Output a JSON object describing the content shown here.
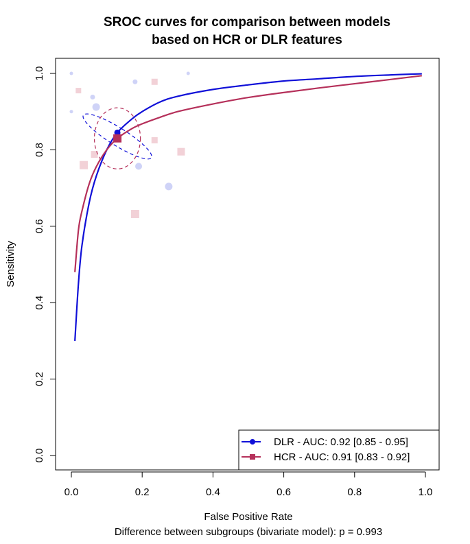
{
  "chart_data": {
    "type": "line",
    "title_line1": "SROC curves for comparison between models",
    "title_line2": "based on HCR or DLR features",
    "xlabel": "False Positive Rate",
    "ylabel": "Sensitivity",
    "footnote": "Difference between subgroups (bivariate model): p = 0.993",
    "xlim": [
      0.0,
      1.0
    ],
    "ylim": [
      0.0,
      1.0
    ],
    "x_ticks": [
      "0.0",
      "0.2",
      "0.4",
      "0.6",
      "0.8",
      "1.0"
    ],
    "y_ticks": [
      "0.0",
      "0.2",
      "0.4",
      "0.6",
      "0.8",
      "1.0"
    ],
    "grid": false,
    "legend_position": "bottom-right",
    "series": [
      {
        "name": "DLR",
        "legend_label": "DLR - AUC: 0.92 [0.85 - 0.95]",
        "color": "#1010d8",
        "marker": "circle",
        "summary_point": {
          "x": 0.13,
          "y": 0.845
        },
        "confidence_ellipse": {
          "cx": 0.13,
          "cy": 0.835,
          "rx_minor": 0.025,
          "ry_major": 0.105,
          "angle_deg": -58
        },
        "curve": [
          [
            0.01,
            0.3
          ],
          [
            0.02,
            0.45
          ],
          [
            0.03,
            0.55
          ],
          [
            0.05,
            0.66
          ],
          [
            0.07,
            0.73
          ],
          [
            0.1,
            0.8
          ],
          [
            0.13,
            0.845
          ],
          [
            0.17,
            0.88
          ],
          [
            0.2,
            0.9
          ],
          [
            0.25,
            0.925
          ],
          [
            0.3,
            0.94
          ],
          [
            0.4,
            0.958
          ],
          [
            0.5,
            0.97
          ],
          [
            0.6,
            0.98
          ],
          [
            0.7,
            0.986
          ],
          [
            0.8,
            0.992
          ],
          [
            0.9,
            0.996
          ],
          [
            0.99,
            0.999
          ]
        ],
        "study_points": [
          {
            "x": 0.0,
            "y": 1.0,
            "size": 3
          },
          {
            "x": 0.0,
            "y": 0.9,
            "size": 3
          },
          {
            "x": 0.06,
            "y": 0.938,
            "size": 5
          },
          {
            "x": 0.07,
            "y": 0.912,
            "size": 9
          },
          {
            "x": 0.18,
            "y": 0.978,
            "size": 5
          },
          {
            "x": 0.19,
            "y": 0.757,
            "size": 8
          },
          {
            "x": 0.275,
            "y": 0.704,
            "size": 9
          },
          {
            "x": 0.33,
            "y": 1.0,
            "size": 3
          }
        ]
      },
      {
        "name": "HCR",
        "legend_label": "HCR - AUC: 0.91 [0.83 - 0.92]",
        "color": "#b5305a",
        "marker": "square",
        "summary_point": {
          "x": 0.13,
          "y": 0.83
        },
        "confidence_ellipse": {
          "cx": 0.13,
          "cy": 0.83,
          "rx_minor": 0.065,
          "ry_major": 0.08,
          "angle_deg": 0
        },
        "curve": [
          [
            0.01,
            0.48
          ],
          [
            0.02,
            0.59
          ],
          [
            0.03,
            0.64
          ],
          [
            0.05,
            0.71
          ],
          [
            0.07,
            0.755
          ],
          [
            0.1,
            0.8
          ],
          [
            0.13,
            0.83
          ],
          [
            0.17,
            0.855
          ],
          [
            0.2,
            0.868
          ],
          [
            0.25,
            0.885
          ],
          [
            0.3,
            0.9
          ],
          [
            0.4,
            0.92
          ],
          [
            0.5,
            0.937
          ],
          [
            0.6,
            0.95
          ],
          [
            0.7,
            0.962
          ],
          [
            0.8,
            0.973
          ],
          [
            0.9,
            0.984
          ],
          [
            0.99,
            0.994
          ]
        ],
        "study_points": [
          {
            "x": 0.02,
            "y": 0.955,
            "size": 6
          },
          {
            "x": 0.035,
            "y": 0.76,
            "size": 10
          },
          {
            "x": 0.065,
            "y": 0.788,
            "size": 8
          },
          {
            "x": 0.18,
            "y": 0.632,
            "size": 10
          },
          {
            "x": 0.235,
            "y": 0.978,
            "size": 7
          },
          {
            "x": 0.235,
            "y": 0.825,
            "size": 7
          },
          {
            "x": 0.31,
            "y": 0.795,
            "size": 9
          }
        ]
      }
    ]
  }
}
